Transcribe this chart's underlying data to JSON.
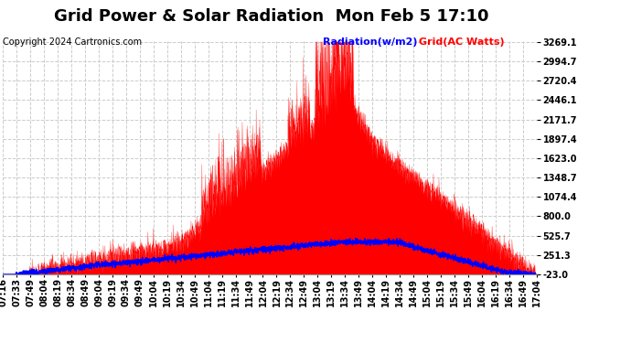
{
  "title": "Grid Power & Solar Radiation  Mon Feb 5 17:10",
  "copyright": "Copyright 2024 Cartronics.com",
  "legend_radiation": "Radiation(w/m2)",
  "legend_grid": "Grid(AC Watts)",
  "yticks": [
    -23.0,
    251.3,
    525.7,
    800.0,
    1074.4,
    1348.7,
    1623.0,
    1897.4,
    2171.7,
    2446.1,
    2720.4,
    2994.7,
    3269.1
  ],
  "ymin": -23.0,
  "ymax": 3269.1,
  "bg_color": "#ffffff",
  "plot_bg_color": "#ffffff",
  "grid_color": "#cccccc",
  "radiation_color": "#0000ff",
  "grid_ac_color": "#ff0000",
  "title_fontsize": 13,
  "legend_fontsize": 8,
  "copyright_fontsize": 7,
  "tick_fontsize": 7,
  "xtick_labels": [
    "07:16",
    "07:33",
    "07:49",
    "08:04",
    "08:19",
    "08:34",
    "08:49",
    "09:04",
    "09:19",
    "09:34",
    "09:49",
    "10:04",
    "10:19",
    "10:34",
    "10:49",
    "11:04",
    "11:19",
    "11:34",
    "11:49",
    "12:04",
    "12:19",
    "12:34",
    "12:49",
    "13:04",
    "13:19",
    "13:34",
    "13:49",
    "14:04",
    "14:19",
    "14:34",
    "14:49",
    "15:04",
    "15:19",
    "15:34",
    "15:49",
    "16:04",
    "16:19",
    "16:34",
    "16:49",
    "17:04"
  ],
  "start_hour": 7.2667,
  "end_hour": 17.0667
}
